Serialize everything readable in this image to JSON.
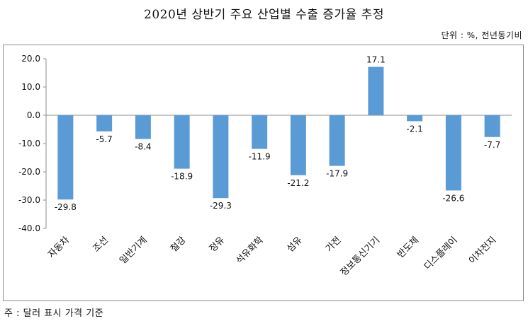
{
  "chart_data": {
    "type": "bar",
    "title": "2020년 상반기 주요 산업별 수출 증가율 추정",
    "unit_note": "단위 : %, 전년동기비",
    "footnote": "주 : 달러 표시 가격 기준",
    "categories": [
      "자동차",
      "조선",
      "일반기계",
      "철강",
      "정유",
      "석유화학",
      "섬유",
      "가전",
      "정보통신기기",
      "반도체",
      "디스플레이",
      "이차전지"
    ],
    "values": [
      -29.8,
      -5.7,
      -8.4,
      -18.9,
      -29.3,
      -11.9,
      -21.2,
      -17.9,
      17.1,
      -2.1,
      -26.6,
      -7.7
    ],
    "value_labels": [
      "-29.8",
      "-5.7",
      "-8.4",
      "-18.9",
      "-29.3",
      "-11.9",
      "-21.2",
      "-17.9",
      "17.1",
      "-2.1",
      "-26.6",
      "-7.7"
    ],
    "yticks": [
      "20.0",
      "10.0",
      "0.0",
      "-10.0",
      "-20.0",
      "-30.0",
      "-40.0"
    ],
    "ylim": [
      -40,
      20
    ],
    "grid": false,
    "colors": {
      "bar": "#5B9BD5",
      "axis": "#8c8c8c"
    }
  }
}
